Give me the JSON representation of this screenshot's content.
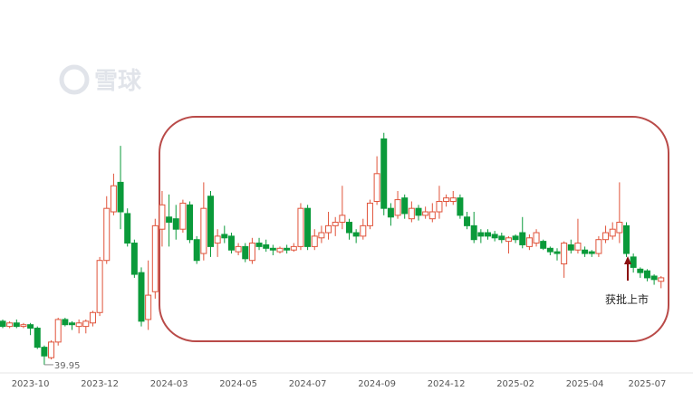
{
  "chart_data": {
    "type": "candlestick",
    "watermark": "雪球",
    "annotation": "获批上市",
    "up_color": "#e0533a",
    "down_color": "#0a9a3a",
    "ylim": [
      30,
      250
    ],
    "categories": [
      null,
      null,
      null,
      null,
      "2023-10",
      null,
      null,
      null,
      null,
      null,
      null,
      null,
      null,
      null,
      "2023-12",
      null,
      null,
      null,
      null,
      null,
      null,
      null,
      null,
      null,
      "2024-03",
      null,
      null,
      null,
      null,
      null,
      null,
      null,
      null,
      null,
      "2024-05",
      null,
      null,
      null,
      null,
      null,
      null,
      null,
      null,
      null,
      "2024-07",
      null,
      null,
      null,
      null,
      null,
      null,
      null,
      null,
      null,
      "2024-09",
      null,
      null,
      null,
      null,
      null,
      null,
      null,
      null,
      null,
      "2024-12",
      null,
      null,
      null,
      null,
      null,
      null,
      null,
      null,
      null,
      "2025-02",
      null,
      null,
      null,
      null,
      null,
      null,
      null,
      null,
      null,
      "2025-04",
      null,
      null,
      null,
      null,
      null,
      null,
      null,
      null,
      "2025-07",
      null,
      null
    ],
    "open": [
      65,
      62,
      64,
      62,
      63,
      61,
      50,
      44,
      53,
      66,
      64,
      62,
      62,
      64,
      70,
      100,
      128,
      145,
      127,
      110,
      93,
      66,
      82,
      118,
      125,
      124,
      118,
      132,
      112,
      104,
      137,
      110,
      115,
      114,
      105,
      108,
      100,
      110,
      109,
      107,
      105,
      107,
      106,
      108,
      130,
      108,
      113,
      116,
      120,
      122,
      122,
      116,
      114,
      120,
      134,
      170,
      130,
      126,
      136,
      124,
      130,
      126,
      124,
      128,
      134,
      134,
      136,
      125,
      120,
      116,
      116,
      115,
      114,
      111,
      114,
      116,
      108,
      110,
      111,
      107,
      105,
      98,
      109,
      106,
      106,
      105,
      104,
      112,
      114,
      116,
      120,
      102,
      95,
      94,
      91,
      88
    ],
    "high": [
      66,
      65,
      66,
      64,
      64,
      62,
      51,
      54,
      67,
      67,
      65,
      66,
      66,
      71,
      102,
      137,
      150,
      166,
      130,
      112,
      96,
      100,
      124,
      140,
      138,
      132,
      135,
      134,
      114,
      145,
      140,
      118,
      120,
      116,
      110,
      110,
      113,
      113,
      112,
      109,
      108,
      109,
      110,
      133,
      132,
      118,
      120,
      128,
      125,
      143,
      124,
      118,
      124,
      135,
      160,
      173.5,
      133,
      140,
      138,
      134,
      132,
      131,
      133,
      143,
      138,
      140,
      138,
      128,
      128,
      118,
      118,
      117,
      116,
      114,
      115,
      125,
      115,
      118,
      112,
      108,
      107,
      111,
      112,
      124,
      108,
      106,
      114,
      120,
      122,
      145,
      122,
      104,
      96,
      95,
      92,
      91
    ],
    "low": [
      61,
      61,
      61,
      61,
      57,
      49,
      39.95,
      43,
      51,
      62,
      60,
      58,
      58,
      62,
      68,
      98,
      126,
      118,
      108,
      90,
      62,
      60,
      78,
      108,
      108,
      112,
      116,
      110,
      98,
      100,
      102,
      102,
      110,
      104,
      103,
      99,
      98,
      106,
      105,
      103,
      104,
      104,
      105,
      106,
      106,
      106,
      110,
      112,
      114,
      118,
      112,
      110,
      112,
      118,
      132,
      126,
      120,
      124,
      124,
      122,
      123,
      124,
      122,
      124,
      131,
      132,
      124,
      118,
      110,
      110,
      112,
      111,
      110,
      104,
      110,
      107,
      106,
      108,
      106,
      103,
      100,
      90,
      104,
      104,
      102,
      102,
      102,
      110,
      112,
      110,
      102,
      93,
      90,
      88,
      86,
      84
    ],
    "close": [
      62,
      64,
      62,
      63,
      61,
      50,
      45,
      53,
      66,
      63,
      63,
      64,
      65,
      70,
      100,
      130,
      143,
      128,
      110,
      92,
      65,
      80,
      120,
      132,
      122,
      118,
      133,
      112,
      100,
      130,
      108,
      114,
      113,
      106,
      108,
      101,
      110,
      108,
      107,
      106,
      107,
      106,
      108,
      130,
      108,
      114,
      116,
      120,
      122,
      126,
      116,
      114,
      120,
      133,
      150,
      130,
      125,
      135,
      127,
      130,
      126,
      128,
      128,
      134,
      136,
      136,
      126,
      120,
      112,
      114,
      114,
      113,
      112,
      113,
      112,
      109,
      113,
      116,
      107,
      105,
      104,
      110,
      106,
      110,
      104,
      104,
      112,
      116,
      118,
      122,
      104,
      96,
      93,
      90,
      89,
      90
    ]
  }
}
